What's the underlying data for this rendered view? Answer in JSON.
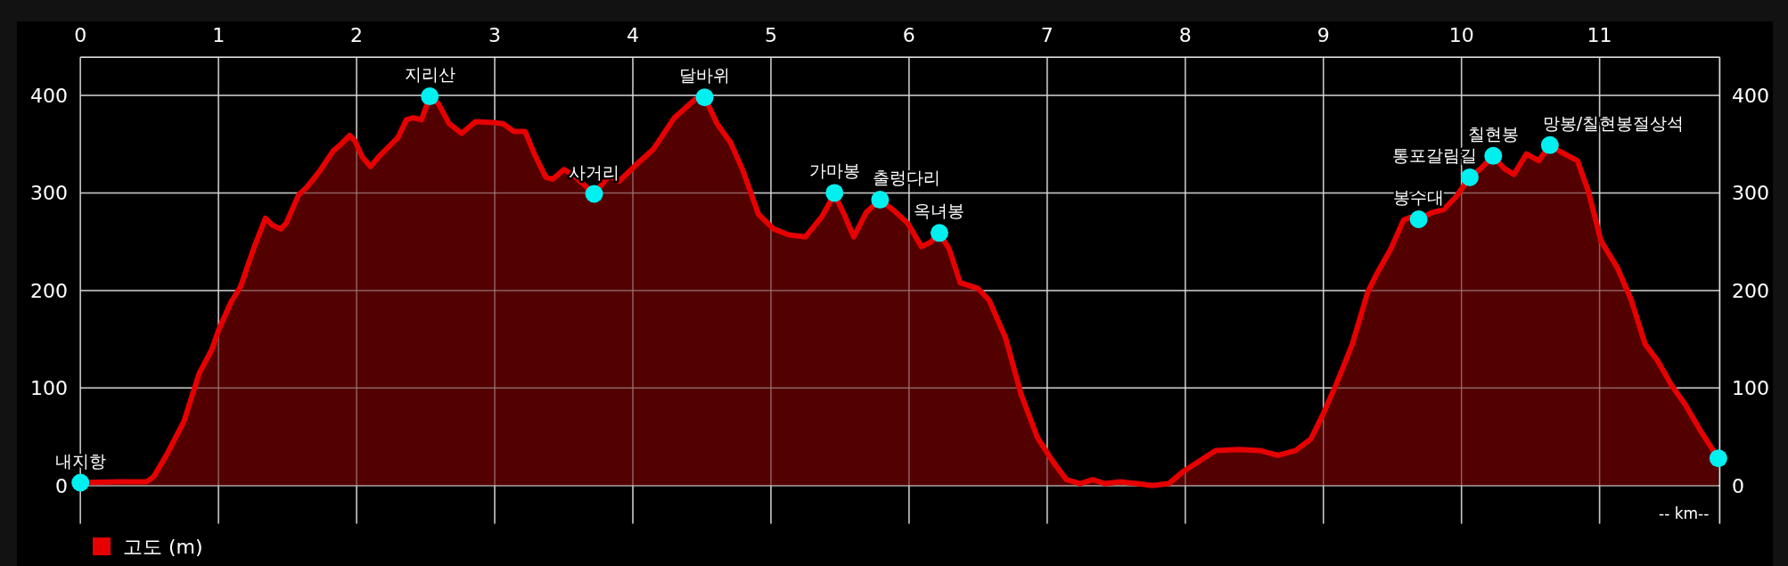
{
  "chart_data": {
    "type": "area",
    "xlim": [
      0,
      11.87
    ],
    "xticks": [
      0,
      1,
      2,
      3,
      4,
      5,
      6,
      7,
      8,
      9,
      10,
      11
    ],
    "ylim": [
      -39,
      439
    ],
    "yticks": [
      0,
      100,
      200,
      300,
      400
    ],
    "y2lim": [
      -39,
      439
    ],
    "y2ticks": [
      0,
      100,
      200,
      300,
      400
    ],
    "grid": true,
    "legend": "bottom left",
    "line_style": "solid",
    "series": [
      {
        "name": "고도 (m)",
        "color": "#e60000",
        "x": [
          0,
          0.28,
          0.48,
          0.53,
          0.63,
          0.75,
          0.86,
          0.95,
          1.0,
          1.09,
          1.16,
          1.26,
          1.34,
          1.39,
          1.45,
          1.49,
          1.58,
          1.64,
          1.73,
          1.83,
          1.88,
          1.95,
          1.99,
          2.04,
          2.1,
          2.16,
          2.23,
          2.3,
          2.36,
          2.41,
          2.47,
          2.53,
          2.59,
          2.67,
          2.76,
          2.86,
          2.99,
          3.06,
          3.14,
          3.22,
          3.29,
          3.37,
          3.42,
          3.5,
          3.57,
          3.72,
          3.83,
          3.9,
          4.04,
          4.15,
          4.3,
          4.45,
          4.52,
          4.61,
          4.71,
          4.8,
          4.91,
          5.02,
          5.13,
          5.25,
          5.37,
          5.46,
          5.53,
          5.6,
          5.69,
          5.79,
          5.89,
          5.99,
          6.09,
          6.15,
          6.22,
          6.29,
          6.37,
          6.5,
          6.58,
          6.7,
          6.81,
          6.93,
          7.04,
          7.14,
          7.24,
          7.33,
          7.42,
          7.53,
          7.65,
          7.76,
          7.88,
          7.99,
          8.1,
          8.22,
          8.39,
          8.54,
          8.67,
          8.8,
          8.91,
          8.99,
          9.09,
          9.21,
          9.32,
          9.39,
          9.49,
          9.58,
          9.63,
          9.69,
          9.79,
          9.87,
          9.96,
          10.06,
          10.14,
          10.23,
          10.31,
          10.38,
          10.47,
          10.56,
          10.64,
          10.72,
          10.84,
          10.92,
          11.01,
          11.13,
          11.23,
          11.33,
          11.42,
          11.52,
          11.62,
          11.74,
          11.86
        ],
        "values": [
          3,
          4,
          4,
          9,
          33,
          66,
          115,
          139,
          159,
          188,
          204,
          245,
          274,
          267,
          263,
          269,
          298,
          306,
          322,
          343,
          349,
          359,
          353,
          337,
          327,
          337,
          347,
          357,
          375,
          377,
          375,
          399,
          392,
          371,
          361,
          373,
          372,
          371,
          363,
          363,
          339,
          316,
          314,
          324,
          318,
          299,
          318,
          312,
          331,
          345,
          377,
          396,
          398,
          371,
          351,
          322,
          278,
          263,
          257,
          255,
          276,
          299,
          278,
          255,
          280,
          293,
          282,
          269,
          245,
          249,
          258,
          243,
          208,
          202,
          190,
          151,
          94,
          49,
          25,
          6,
          2,
          6,
          2,
          4,
          2,
          0,
          2,
          15,
          25,
          36,
          37,
          36,
          31,
          36,
          48,
          71,
          103,
          145,
          198,
          218,
          243,
          272,
          275,
          273,
          280,
          283,
          296,
          316,
          325,
          338,
          325,
          319,
          340,
          333,
          349,
          342,
          333,
          301,
          251,
          223,
          190,
          145,
          128,
          103,
          83,
          54,
          28
        ]
      },
      {
        "type": "scatter",
        "marker": "circle",
        "color": "#00f0f0",
        "x": [
          0,
          2.53,
          3.72,
          4.52,
          5.46,
          5.79,
          6.22,
          9.69,
          10.06,
          10.23,
          10.64,
          11.86
        ],
        "values": [
          3,
          399,
          299,
          398,
          300,
          293,
          259,
          273,
          316,
          338,
          349,
          28
        ]
      }
    ],
    "annotations": [
      {
        "text": "내지항",
        "x": 0,
        "y": 3
      },
      {
        "text": "지리산",
        "x": 2.53,
        "y": 399
      },
      {
        "text": "사거리",
        "x": 3.72,
        "y": 299
      },
      {
        "text": "달바위",
        "x": 4.52,
        "y": 398
      },
      {
        "text": "가마봉",
        "x": 5.46,
        "y": 300
      },
      {
        "text": "출렁다리",
        "x": 5.79,
        "y": 293
      },
      {
        "text": "옥녀봉",
        "x": 6.22,
        "y": 259
      },
      {
        "text": "봉수대",
        "x": 9.69,
        "y": 273
      },
      {
        "text": "통포갈림길",
        "x": 10.06,
        "y": 316
      },
      {
        "text": "칠현봉",
        "x": 10.23,
        "y": 338
      },
      {
        "text": "망봉/칠현봉절상석",
        "x": 10.64,
        "y": 349
      },
      "-- km--"
    ]
  }
}
